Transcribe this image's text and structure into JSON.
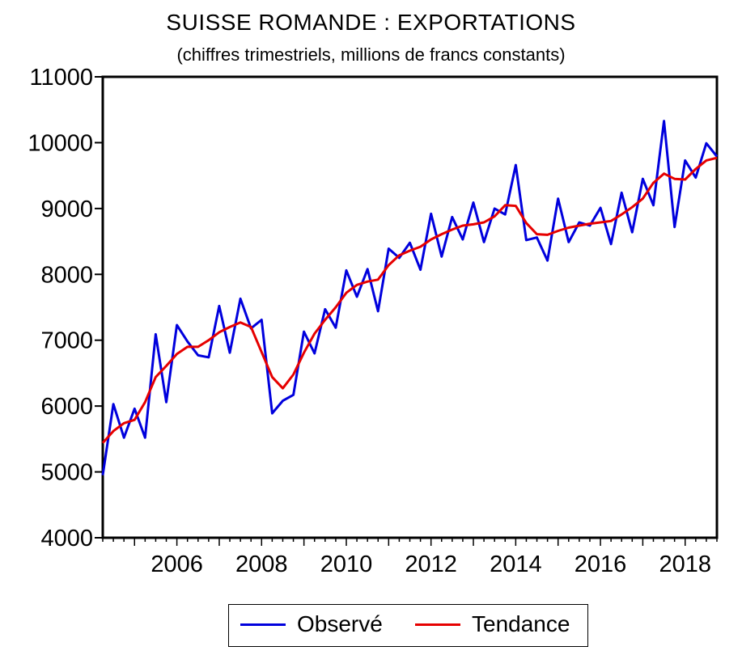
{
  "colors": {
    "observed": "#0000dd",
    "trend": "#e60000",
    "axes": "#000000"
  },
  "chart_data": {
    "type": "line",
    "title": "SUISSE ROMANDE : EXPORTATIONS",
    "subtitle": "(chiffres trimestriels, millions de francs constants)",
    "xlabel": "",
    "ylabel": "",
    "x_unit": "quarter",
    "x_range": [
      "2004Q2",
      "2018Q4"
    ],
    "ylim": [
      4000,
      11000
    ],
    "yticks": [
      4000,
      5000,
      6000,
      7000,
      8000,
      9000,
      10000,
      11000
    ],
    "xticks": [
      "2006",
      "2008",
      "2010",
      "2012",
      "2014",
      "2016",
      "2018"
    ],
    "grid": false,
    "legend_position": "bottom",
    "x": [
      "2004Q2",
      "2004Q3",
      "2004Q4",
      "2005Q1",
      "2005Q2",
      "2005Q3",
      "2005Q4",
      "2006Q1",
      "2006Q2",
      "2006Q3",
      "2006Q4",
      "2007Q1",
      "2007Q2",
      "2007Q3",
      "2007Q4",
      "2008Q1",
      "2008Q2",
      "2008Q3",
      "2008Q4",
      "2009Q1",
      "2009Q2",
      "2009Q3",
      "2009Q4",
      "2010Q1",
      "2010Q2",
      "2010Q3",
      "2010Q4",
      "2011Q1",
      "2011Q2",
      "2011Q3",
      "2011Q4",
      "2012Q1",
      "2012Q2",
      "2012Q3",
      "2012Q4",
      "2013Q1",
      "2013Q2",
      "2013Q3",
      "2013Q4",
      "2014Q1",
      "2014Q2",
      "2014Q3",
      "2014Q4",
      "2015Q1",
      "2015Q2",
      "2015Q3",
      "2015Q4",
      "2016Q1",
      "2016Q2",
      "2016Q3",
      "2016Q4",
      "2017Q1",
      "2017Q2",
      "2017Q3",
      "2017Q4",
      "2018Q1",
      "2018Q2",
      "2018Q3",
      "2018Q4"
    ],
    "series": [
      {
        "name": "Observé",
        "color": "#0000dd",
        "values": [
          4950,
          6030,
          5520,
          5960,
          5520,
          7090,
          6060,
          7230,
          6980,
          6770,
          6740,
          7520,
          6810,
          7630,
          7180,
          7310,
          5890,
          6080,
          6170,
          7130,
          6800,
          7470,
          7190,
          8060,
          7660,
          8080,
          7440,
          8390,
          8250,
          8480,
          8070,
          8920,
          8270,
          8870,
          8530,
          9090,
          8490,
          9000,
          8910,
          9660,
          8520,
          8560,
          8210,
          9150,
          8490,
          8790,
          8740,
          9010,
          8460,
          9240,
          8640,
          9450,
          9050,
          10330,
          8720,
          9730,
          9470,
          9990,
          9790
        ]
      },
      {
        "name": "Tendance",
        "color": "#e60000",
        "values": [
          5440,
          5620,
          5740,
          5790,
          6060,
          6440,
          6610,
          6790,
          6900,
          6900,
          7000,
          7120,
          7200,
          7270,
          7200,
          6820,
          6440,
          6270,
          6480,
          6810,
          7100,
          7310,
          7500,
          7720,
          7840,
          7890,
          7920,
          8140,
          8290,
          8360,
          8420,
          8530,
          8610,
          8680,
          8740,
          8760,
          8790,
          8880,
          9050,
          9040,
          8780,
          8610,
          8600,
          8660,
          8710,
          8740,
          8770,
          8790,
          8810,
          8910,
          9020,
          9150,
          9390,
          9530,
          9450,
          9440,
          9600,
          9730,
          9770
        ]
      }
    ]
  }
}
